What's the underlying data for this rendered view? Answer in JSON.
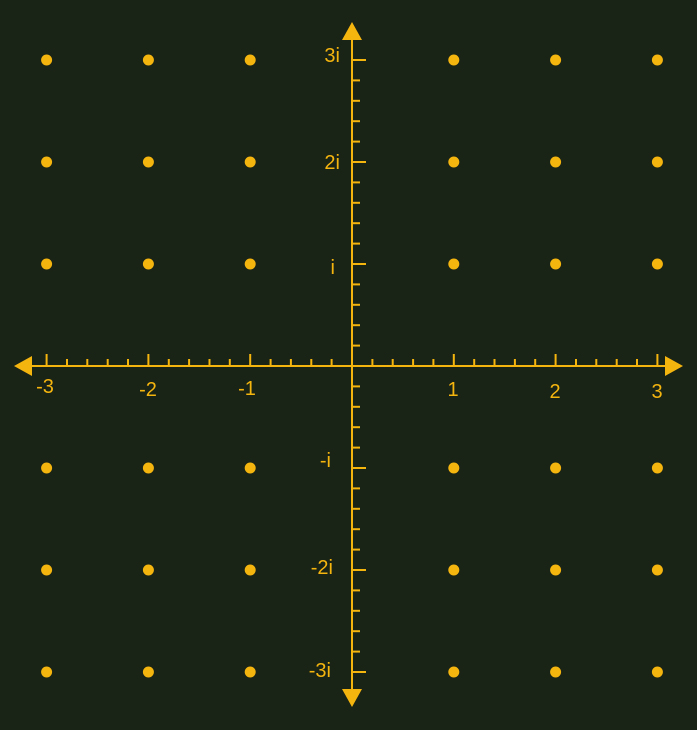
{
  "colors": {
    "background": "#192316",
    "accent": "#f5b50f"
  },
  "axes": {
    "real": {
      "range": [
        -3,
        3
      ],
      "minor_ticks_per_unit": 5,
      "labels": [
        "-3",
        "-2",
        "-1",
        "1",
        "2",
        "3"
      ]
    },
    "imaginary": {
      "range": [
        -3,
        3
      ],
      "minor_ticks_per_unit": 5,
      "labels": [
        "3i",
        "2i",
        "i",
        "-i",
        "-2i",
        "-3i"
      ]
    },
    "arrows": true
  },
  "lattice": {
    "real_values": [
      -3,
      -2,
      -1,
      1,
      2,
      3
    ],
    "imaginary_values": [
      3,
      2,
      1,
      -1,
      -2,
      -3
    ]
  }
}
